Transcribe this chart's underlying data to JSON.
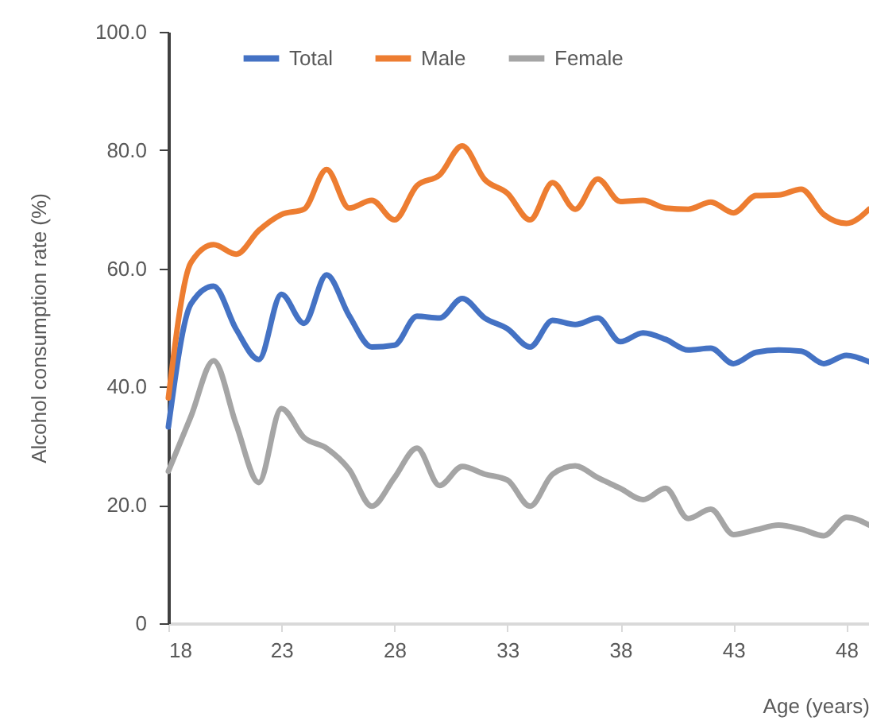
{
  "chart_data": {
    "type": "line",
    "xlabel": "Age (years)",
    "ylabel": "Alcohol consumption rate (%)",
    "x": [
      18,
      19,
      20,
      21,
      22,
      23,
      24,
      25,
      26,
      27,
      28,
      29,
      30,
      31,
      32,
      33,
      34,
      35,
      36,
      37,
      38,
      39,
      40,
      41,
      42,
      43,
      44,
      45,
      46,
      47,
      48,
      49
    ],
    "xlim": [
      18,
      49
    ],
    "xticks": [
      18,
      23,
      28,
      33,
      38,
      43,
      48
    ],
    "ylim": [
      0,
      100
    ],
    "yticks": [
      {
        "value": 0,
        "label": "0"
      },
      {
        "value": 20,
        "label": "20.0"
      },
      {
        "value": 40,
        "label": "40.0"
      },
      {
        "value": 60,
        "label": "60.0"
      },
      {
        "value": 80,
        "label": "80.0"
      },
      {
        "value": 100,
        "label": "100.0"
      }
    ],
    "series": [
      {
        "name": "Total",
        "color": "#4472c4",
        "values": [
          33.2,
          54,
          57,
          49.7,
          44.6,
          55.6,
          50.7,
          58.9,
          52,
          46.7,
          47,
          51.9,
          51.6,
          54.9,
          51.6,
          49.8,
          46.7,
          51.2,
          50.5,
          51.6,
          47.6,
          49.1,
          48,
          46.2,
          46.5,
          43.9,
          45.8,
          46.2,
          46,
          43.9,
          45.3,
          44.2
        ]
      },
      {
        "name": "Male",
        "color": "#ed7d31",
        "values": [
          38.1,
          61,
          64,
          62.4,
          66.4,
          69.1,
          70,
          76.7,
          70.2,
          71.5,
          68.2,
          74,
          75.8,
          80.7,
          75,
          72.7,
          68.2,
          74.5,
          70,
          75.1,
          71.3,
          71.5,
          70.2,
          70,
          71.2,
          69.4,
          72.3,
          72.4,
          73.4,
          69.1,
          67.6,
          70
        ]
      },
      {
        "name": "Female",
        "color": "#a5a5a5",
        "values": [
          25.7,
          35,
          44.4,
          33.6,
          23.8,
          36.3,
          31.4,
          29.6,
          26,
          19.8,
          24.6,
          29.6,
          23.3,
          26.5,
          25.2,
          24.2,
          19.8,
          25.2,
          26.6,
          24.6,
          22.8,
          20.9,
          22.8,
          17.7,
          19.3,
          15,
          15.8,
          16.6,
          15.9,
          14.8,
          17.9,
          16.6
        ]
      }
    ],
    "legend": "top",
    "grid": false,
    "marker": "none",
    "line_style": "solid"
  }
}
